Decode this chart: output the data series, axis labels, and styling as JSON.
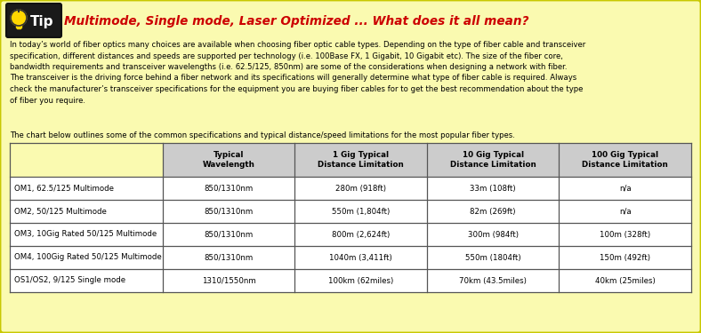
{
  "bg_color": "#FAFAB0",
  "border_color": "#C8C800",
  "title_text": "Multimode, Single mode, Laser Optimized ... What does it all mean?",
  "title_color": "#CC0000",
  "body_text": "In today’s world of fiber optics many choices are available when choosing fiber optic cable types. Depending on the type of fiber cable and transceiver\nspecification, different distances and speeds are supported per technology (i.e. 100Base FX, 1 Gigabit, 10 Gigabit etc). The size of the fiber core,\nbandwidth requirements and transceiver wavelengths (i.e. 62.5/125, 850nm) are some of the considerations when designing a network with fiber.\nThe transceiver is the driving force behind a fiber network and its specifications will generally determine what type of fiber cable is required. Always\ncheck the manufacturer’s transceiver specifications for the equipment you are buying fiber cables for to get the best recommendation about the type\nof fiber you require.",
  "sub_text": "The chart below outlines some of the common specifications and typical distance/speed limitations for the most popular fiber types.",
  "col_headers": [
    "Typical\nWavelength",
    "1 Gig Typical\nDistance Limitation",
    "10 Gig Typical\nDistance Limitation",
    "100 Gig Typical\nDistance Limitation"
  ],
  "row_labels": [
    "OM1, 62.5/125 Multimode",
    "OM2, 50/125 Multimode",
    "OM3, 10Gig Rated 50/125 Multimode",
    "OM4, 100Gig Rated 50/125 Multimode",
    "OS1/OS2, 9/125 Single mode"
  ],
  "table_data": [
    [
      "850/1310nm",
      "280m (918ft)",
      "33m (108ft)",
      "n/a"
    ],
    [
      "850/1310nm",
      "550m (1,804ft)",
      "82m (269ft)",
      "n/a"
    ],
    [
      "850/1310nm",
      "800m (2,624ft)",
      "300m (984ft)",
      "100m (328ft)"
    ],
    [
      "850/1310nm",
      "1040m (3,411ft)",
      "550m (1804ft)",
      "150m (492ft)"
    ],
    [
      "1310/1550nm",
      "100km (62miles)",
      "70km (43.5miles)",
      "40km (25miles)"
    ]
  ],
  "table_header_bg": "#CCCCCC",
  "table_border_color": "#555555",
  "text_color": "#000000",
  "tip_dark_bg": "#1A1A1A",
  "tip_text_color": "#FFFFFF",
  "bulb_color": "#FFD700",
  "bulb_outline": "#333333"
}
